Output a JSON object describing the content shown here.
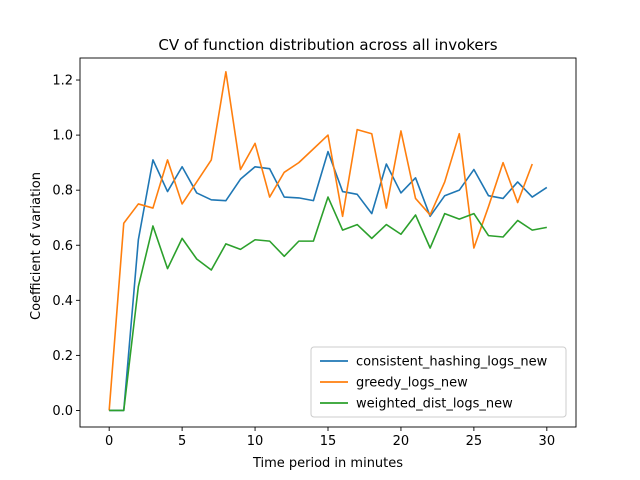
{
  "chart_data": {
    "type": "line",
    "title": "CV of function distribution across all invokers",
    "xlabel": "Time period in minutes",
    "ylabel": "Coefficient of variation",
    "xlim": [
      -2,
      32
    ],
    "ylim": [
      -0.06,
      1.28
    ],
    "xticks": [
      0,
      5,
      10,
      15,
      20,
      25,
      30
    ],
    "yticks": [
      0.0,
      0.2,
      0.4,
      0.6,
      0.8,
      1.0,
      1.2
    ],
    "xtick_labels": [
      "0",
      "5",
      "10",
      "15",
      "20",
      "25",
      "30"
    ],
    "ytick_labels": [
      "0.0",
      "0.2",
      "0.4",
      "0.6",
      "0.8",
      "1.0",
      "1.2"
    ],
    "grid": false,
    "legend_position": "lower-right",
    "series": [
      {
        "name": "consistent_hashing_logs_new",
        "color": "#1f77b4",
        "x": [
          0,
          1,
          2,
          3,
          4,
          5,
          6,
          7,
          8,
          9,
          10,
          11,
          12,
          13,
          14,
          15,
          16,
          17,
          18,
          19,
          20,
          21,
          22,
          23,
          24,
          25,
          26,
          27,
          28,
          29,
          30
        ],
        "values": [
          0.0,
          0.0,
          0.62,
          0.91,
          0.795,
          0.885,
          0.79,
          0.765,
          0.762,
          0.84,
          0.885,
          0.878,
          0.775,
          0.772,
          0.762,
          0.94,
          0.795,
          0.785,
          0.715,
          0.895,
          0.79,
          0.845,
          0.705,
          0.78,
          0.8,
          0.875,
          0.78,
          0.77,
          0.83,
          0.775,
          0.81
        ]
      },
      {
        "name": "greedy_logs_new",
        "color": "#ff7f0e",
        "x": [
          0,
          1,
          2,
          3,
          4,
          5,
          6,
          7,
          8,
          9,
          10,
          11,
          12,
          13,
          14,
          15,
          16,
          17,
          18,
          19,
          20,
          21,
          22,
          23,
          24,
          25,
          26,
          27,
          28,
          29
        ],
        "values": [
          0.0,
          0.68,
          0.75,
          0.735,
          0.91,
          0.75,
          0.83,
          0.91,
          1.23,
          0.875,
          0.97,
          0.775,
          0.865,
          0.9,
          0.95,
          1.0,
          0.705,
          1.02,
          1.005,
          0.735,
          1.015,
          0.77,
          0.71,
          0.83,
          1.005,
          0.59,
          0.74,
          0.9,
          0.755,
          0.895
        ]
      },
      {
        "name": "weighted_dist_logs_new",
        "color": "#2ca02c",
        "x": [
          0,
          1,
          2,
          3,
          4,
          5,
          6,
          7,
          8,
          9,
          10,
          11,
          12,
          13,
          14,
          15,
          16,
          17,
          18,
          19,
          20,
          21,
          22,
          23,
          24,
          25,
          26,
          27,
          28,
          29,
          30
        ],
        "values": [
          0.0,
          0.0,
          0.45,
          0.67,
          0.515,
          0.625,
          0.55,
          0.51,
          0.605,
          0.585,
          0.62,
          0.615,
          0.56,
          0.615,
          0.615,
          0.775,
          0.655,
          0.675,
          0.625,
          0.675,
          0.64,
          0.71,
          0.59,
          0.715,
          0.695,
          0.715,
          0.635,
          0.63,
          0.69,
          0.655,
          0.665
        ]
      }
    ]
  }
}
